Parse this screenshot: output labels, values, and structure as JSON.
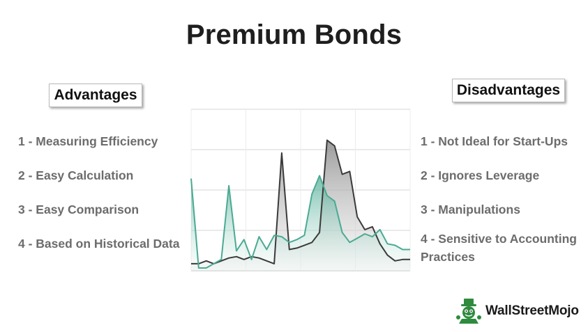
{
  "title": "Premium Bonds",
  "advantages": {
    "header": "Advantages",
    "items": [
      "1 - Measuring Efficiency",
      "2 - Easy Calculation",
      "3 - Easy Comparison",
      "4 - Based on Historical Data"
    ]
  },
  "disadvantages": {
    "header": "Disadvantages",
    "items": [
      "1 - Not Ideal for Start-Ups",
      "2 - Ignores Leverage",
      "3 - Manipulations",
      "4 - Sensitive to Accounting Practices"
    ]
  },
  "brand": {
    "name": "WallStreetMojo"
  },
  "colors": {
    "title": "#1e1e1e",
    "item_text": "#6c6c6c",
    "series_dark": "#3a3a3a",
    "series_teal": "#4aaa92",
    "grid": "#d6d6d6",
    "logo_green": "#2e8b3e"
  },
  "chart_data": {
    "type": "area",
    "grid": true,
    "ylim": [
      0,
      100
    ],
    "series": [
      {
        "color": "#3a3a3a",
        "values": [
          3,
          3,
          5,
          3,
          5,
          7,
          8,
          6,
          8,
          7,
          5,
          3,
          81,
          13,
          14,
          16,
          18,
          25,
          90,
          86,
          66,
          68,
          36,
          27,
          29,
          17,
          9,
          5,
          6,
          6
        ]
      },
      {
        "color": "#4aaa92",
        "values": [
          63,
          0,
          0,
          3,
          6,
          58,
          12,
          20,
          6,
          22,
          13,
          23,
          22,
          18,
          20,
          23,
          52,
          65,
          51,
          47,
          25,
          18,
          21,
          24,
          22,
          27,
          17,
          16,
          13,
          13
        ]
      }
    ]
  }
}
